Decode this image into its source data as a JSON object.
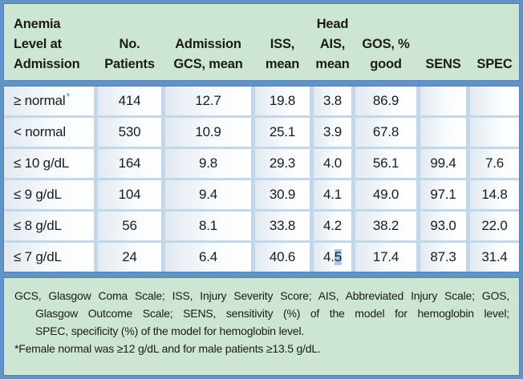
{
  "colors": {
    "frame_blue": "#6293c7",
    "panel_green": "#cde6d3",
    "separator_blue": "#c3d7eb",
    "selection_highlight_blue": "#a9c9e9",
    "asterisk_blue": "#2e96d0",
    "text": "#1b1b1b"
  },
  "header": {
    "columns": [
      {
        "lines": [
          "Anemia",
          "Level at",
          "Admission"
        ]
      },
      {
        "lines": [
          "No.",
          "Patients"
        ]
      },
      {
        "lines": [
          "Admission",
          "GCS, mean"
        ]
      },
      {
        "lines": [
          "ISS,",
          "mean"
        ]
      },
      {
        "lines": [
          "Head",
          "AIS,",
          "mean"
        ]
      },
      {
        "lines": [
          "GOS, %",
          "good"
        ]
      },
      {
        "lines": [
          "SENS"
        ]
      },
      {
        "lines": [
          "SPEC"
        ]
      }
    ]
  },
  "rows": [
    {
      "label": "≥ normal",
      "star": "*",
      "cells": [
        "414",
        "12.7",
        "19.8",
        "3.8",
        "86.9",
        "",
        ""
      ]
    },
    {
      "label": "< normal",
      "star": "",
      "cells": [
        "530",
        "10.9",
        "25.1",
        "3.9",
        "67.8",
        "",
        ""
      ]
    },
    {
      "label": "≤ 10 g/dL",
      "star": "",
      "cells": [
        "164",
        "9.8",
        "29.3",
        "4.0",
        "56.1",
        "99.4",
        "7.6"
      ]
    },
    {
      "label": "≤ 9 g/dL",
      "star": "",
      "cells": [
        "104",
        "9.4",
        "30.9",
        "4.1",
        "49.0",
        "97.1",
        "14.8"
      ]
    },
    {
      "label": "≤ 8 g/dL",
      "star": "",
      "cells": [
        "56",
        "8.1",
        "33.8",
        "4.2",
        "38.2",
        "93.0",
        "22.0"
      ]
    },
    {
      "label": "≤ 7 g/dL",
      "star": "",
      "cells": [
        "24",
        "6.4",
        "40.6",
        "4.",
        "17.4",
        "87.3",
        "31.4"
      ],
      "ais_selected": "5"
    }
  ],
  "footnotes": {
    "line1": "GCS, Glasgow Coma Scale; ISS, Injury Severity Score; AIS, Abbreviated Injury Scale; GOS,",
    "line2": "Glasgow Outcome Scale; SENS, sensitivity (%) of the model for hemoglobin level;",
    "line3": "SPEC, specificity (%) of the model for hemoglobin level.",
    "line4": "*Female normal was ≥12 g/dL and for male patients ≥13.5 g/dL."
  },
  "chart_data": {
    "type": "table",
    "columns": [
      "Anemia Level at Admission",
      "No. Patients",
      "Admission GCS, mean",
      "ISS, mean",
      "Head AIS, mean",
      "GOS, % good",
      "SENS",
      "SPEC"
    ],
    "rows": [
      [
        "≥ normal*",
        414,
        12.7,
        19.8,
        3.8,
        86.9,
        null,
        null
      ],
      [
        "< normal",
        530,
        10.9,
        25.1,
        3.9,
        67.8,
        null,
        null
      ],
      [
        "≤ 10 g/dL",
        164,
        9.8,
        29.3,
        4.0,
        56.1,
        99.4,
        7.6
      ],
      [
        "≤ 9 g/dL",
        104,
        9.4,
        30.9,
        4.1,
        49.0,
        97.1,
        14.8
      ],
      [
        "≤ 8 g/dL",
        56,
        8.1,
        33.8,
        4.2,
        38.2,
        93.0,
        22.0
      ],
      [
        "≤ 7 g/dL",
        24,
        6.4,
        40.6,
        4.5,
        17.4,
        87.3,
        31.4
      ]
    ]
  }
}
